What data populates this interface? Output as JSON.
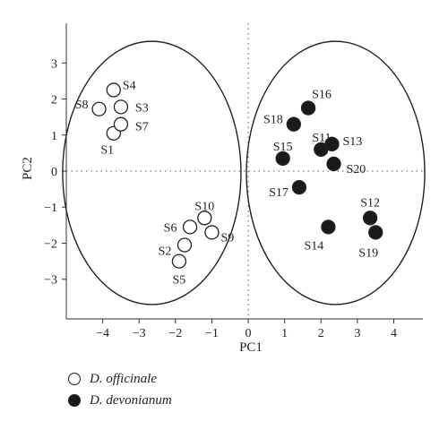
{
  "chart_data": {
    "type": "scatter",
    "title": "",
    "xlabel": "PC1",
    "ylabel": "PC2",
    "xlim": [
      -5,
      4.8
    ],
    "ylim": [
      -4.1,
      4.1
    ],
    "xticks": [
      -4,
      -3,
      -2,
      -1,
      0,
      1,
      2,
      3,
      4
    ],
    "yticks": [
      -3,
      -2,
      -1,
      0,
      1,
      2,
      3
    ],
    "grid": false,
    "reference_lines": {
      "x": 0,
      "y": 0,
      "style": "dotted"
    },
    "legend_position": "bottom-left",
    "series": [
      {
        "name": "D. officinale",
        "marker": "open-circle",
        "points": [
          {
            "label": "S1",
            "x": -3.7,
            "y": 1.05
          },
          {
            "label": "S2",
            "x": -1.75,
            "y": -2.05
          },
          {
            "label": "S3",
            "x": -3.5,
            "y": 1.78
          },
          {
            "label": "S4",
            "x": -3.7,
            "y": 2.25
          },
          {
            "label": "S5",
            "x": -1.9,
            "y": -2.5
          },
          {
            "label": "S6",
            "x": -1.6,
            "y": -1.55
          },
          {
            "label": "S7",
            "x": -3.5,
            "y": 1.3
          },
          {
            "label": "S8",
            "x": -4.1,
            "y": 1.72
          },
          {
            "label": "S9",
            "x": -1.0,
            "y": -1.7
          },
          {
            "label": "S10",
            "x": -1.2,
            "y": -1.3
          }
        ]
      },
      {
        "name": "D. devonianum",
        "marker": "filled-circle",
        "points": [
          {
            "label": "S11",
            "x": 2.0,
            "y": 0.6
          },
          {
            "label": "S12",
            "x": 3.35,
            "y": -1.3
          },
          {
            "label": "S13",
            "x": 2.3,
            "y": 0.75
          },
          {
            "label": "S14",
            "x": 2.2,
            "y": -1.55
          },
          {
            "label": "S15",
            "x": 0.95,
            "y": 0.35
          },
          {
            "label": "S16",
            "x": 1.65,
            "y": 1.75
          },
          {
            "label": "S17",
            "x": 1.4,
            "y": -0.45
          },
          {
            "label": "S18",
            "x": 1.25,
            "y": 1.3
          },
          {
            "label": "S19",
            "x": 3.5,
            "y": -1.7
          },
          {
            "label": "S20",
            "x": 2.35,
            "y": 0.2
          }
        ]
      }
    ],
    "ellipses": [
      {
        "group": "D. officinale",
        "cx": -2.65,
        "cy": -0.05,
        "rx": 2.45,
        "ry": 3.65
      },
      {
        "group": "D. devonianum",
        "cx": 2.4,
        "cy": -0.05,
        "rx": 2.45,
        "ry": 3.65
      }
    ]
  }
}
